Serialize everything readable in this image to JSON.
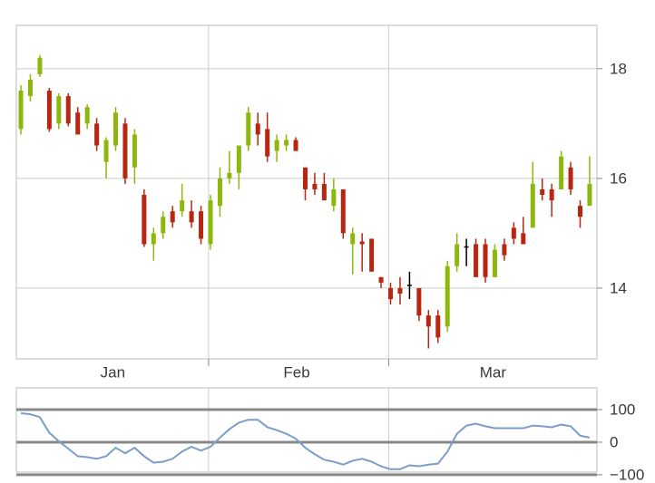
{
  "chart_data": [
    {
      "type": "candlestick",
      "x": [
        0,
        1,
        2,
        3,
        4,
        5,
        6,
        7,
        8,
        9,
        10,
        11,
        12,
        13,
        14,
        15,
        16,
        17,
        18,
        19,
        20,
        21,
        22,
        23,
        24,
        25,
        26,
        27,
        28,
        29,
        30,
        31,
        32,
        33,
        34,
        35,
        36,
        37,
        38,
        39,
        40,
        41,
        42,
        43,
        44,
        45,
        46,
        47,
        48,
        49,
        50,
        51,
        52,
        53,
        54,
        55,
        56,
        57,
        58,
        59,
        60
      ],
      "open": [
        16.9,
        17.5,
        17.9,
        17.6,
        17.0,
        17.5,
        17.2,
        17.0,
        17.0,
        16.3,
        16.6,
        17.0,
        16.2,
        15.7,
        14.8,
        15.0,
        15.4,
        15.4,
        15.4,
        15.4,
        14.8,
        15.5,
        16.0,
        16.1,
        16.6,
        17.0,
        16.9,
        16.5,
        16.6,
        16.7,
        16.2,
        15.9,
        15.9,
        15.5,
        15.8,
        14.8,
        14.85,
        14.9,
        14.2,
        14.0,
        14.0,
        14.05,
        14.0,
        13.5,
        13.5,
        13.3,
        14.4,
        14.75,
        14.8,
        14.8,
        14.2,
        14.8,
        15.1,
        15.0,
        15.1,
        15.8,
        15.8,
        15.8,
        16.2,
        15.5,
        15.5
      ],
      "high": [
        17.7,
        17.9,
        18.25,
        17.65,
        17.55,
        17.55,
        17.3,
        17.35,
        17.1,
        16.75,
        17.3,
        17.1,
        16.9,
        15.8,
        15.1,
        15.4,
        15.5,
        15.9,
        15.6,
        15.5,
        15.7,
        16.2,
        16.5,
        16.6,
        17.3,
        17.2,
        17.2,
        16.8,
        16.8,
        16.75,
        16.2,
        16.1,
        16.1,
        16.0,
        15.8,
        15.1,
        15.0,
        14.9,
        14.2,
        14.1,
        14.2,
        14.3,
        14.0,
        13.6,
        13.6,
        14.5,
        15.0,
        14.9,
        14.9,
        14.9,
        14.8,
        14.9,
        15.2,
        15.3,
        16.3,
        16.0,
        15.9,
        16.5,
        16.3,
        15.6,
        16.4
      ],
      "low": [
        16.8,
        17.4,
        17.85,
        16.85,
        16.9,
        16.95,
        16.8,
        16.9,
        16.5,
        16.0,
        16.5,
        15.9,
        15.9,
        14.75,
        14.5,
        14.9,
        15.1,
        15.3,
        15.1,
        14.8,
        14.7,
        15.3,
        15.9,
        15.8,
        16.5,
        16.6,
        16.3,
        16.3,
        16.5,
        16.5,
        15.6,
        15.7,
        15.6,
        15.4,
        14.9,
        14.25,
        14.3,
        14.3,
        14.0,
        13.7,
        13.7,
        13.8,
        13.4,
        12.9,
        13.0,
        13.2,
        14.3,
        14.4,
        14.2,
        14.1,
        14.2,
        14.5,
        14.8,
        14.8,
        15.1,
        15.6,
        15.3,
        15.8,
        15.7,
        15.1,
        15.5
      ],
      "close": [
        17.6,
        17.8,
        18.2,
        16.9,
        17.5,
        17.0,
        16.8,
        17.3,
        16.6,
        16.7,
        17.2,
        16.0,
        16.8,
        14.8,
        15.0,
        15.3,
        15.2,
        15.6,
        15.2,
        14.9,
        15.6,
        16.0,
        16.1,
        16.6,
        17.2,
        16.8,
        16.4,
        16.7,
        16.7,
        16.5,
        15.8,
        15.8,
        15.6,
        15.8,
        15.0,
        15.0,
        14.8,
        14.3,
        14.1,
        13.8,
        13.9,
        14.05,
        13.5,
        13.3,
        13.1,
        14.4,
        14.8,
        14.75,
        14.2,
        14.2,
        14.7,
        14.6,
        14.9,
        14.8,
        15.9,
        15.7,
        15.6,
        16.4,
        15.8,
        15.3,
        15.9
      ],
      "up_color": "#8cb80c",
      "down_color": "#b82510",
      "flat_color": "#000000",
      "xlim": [
        -0.48,
        60.77
      ],
      "xticks": [
        {
          "value": 9.7,
          "label": "Jan"
        },
        {
          "value": 29.1,
          "label": "Feb"
        },
        {
          "value": 49.8,
          "label": "Mar"
        }
      ],
      "xgrid": [
        19.8,
        38.8
      ],
      "ylim": [
        12.71,
        18.79
      ],
      "yticks": [
        14,
        16,
        18
      ],
      "grid": true
    },
    {
      "type": "line",
      "x": [
        0,
        1,
        2,
        3,
        4,
        5,
        6,
        7,
        8,
        9,
        10,
        11,
        12,
        13,
        14,
        15,
        16,
        17,
        18,
        19,
        20,
        21,
        22,
        23,
        24,
        25,
        26,
        27,
        28,
        29,
        30,
        31,
        32,
        33,
        34,
        35,
        36,
        37,
        38,
        39,
        40,
        41,
        42,
        43,
        44,
        45,
        46,
        47,
        48,
        49,
        50,
        51,
        52,
        53,
        54,
        55,
        56,
        57,
        58,
        59,
        60
      ],
      "values": [
        89,
        86,
        77,
        29,
        3,
        -20,
        -43,
        -46,
        -51,
        -43,
        -17,
        -34,
        -17,
        -43,
        -63,
        -60,
        -51,
        -29,
        -14,
        -26,
        -14,
        14,
        40,
        60,
        69,
        69,
        46,
        37,
        26,
        11,
        -17,
        -37,
        -54,
        -60,
        -69,
        -57,
        -51,
        -60,
        -74,
        -83,
        -83,
        -71,
        -74,
        -69,
        -66,
        -29,
        26,
        51,
        57,
        49,
        43,
        43,
        43,
        43,
        51,
        49,
        46,
        54,
        49,
        20,
        14
      ],
      "color": "#7b9dcc",
      "xlim": [
        -0.48,
        60.77
      ],
      "xgrid": [
        19.8,
        38.8
      ],
      "ylim": [
        -92,
        167
      ],
      "yticks": [
        100,
        0,
        {
          "value": -100,
          "label": "−100"
        }
      ],
      "reference_lines": true
    }
  ]
}
